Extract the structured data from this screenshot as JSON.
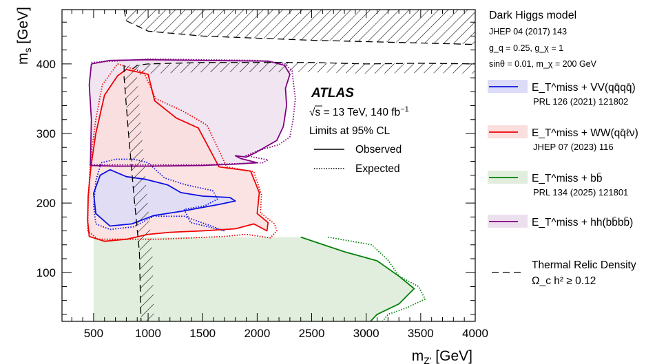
{
  "chart_data": {
    "type": "area",
    "title": "",
    "xlabel": "m",
    "xlabel_sub": "Z'",
    "xlabel_unit": " [GeV]",
    "ylabel": "m",
    "ylabel_sub": "s",
    "ylabel_unit": " [GeV]",
    "xlim": [
      210,
      4000
    ],
    "ylim": [
      30,
      478
    ],
    "xticks": [
      500,
      1000,
      1500,
      2000,
      2500,
      3000,
      3500,
      4000
    ],
    "yticks": [
      100,
      200,
      300,
      400
    ],
    "atlas": {
      "label": "ATLAS",
      "energy_prefix": "√s = 13 TeV, 140 fb",
      "energy_sup": "−1",
      "cl": "Limits at 95% CL",
      "observed": "Observed",
      "expected": "Expected"
    },
    "model": {
      "title": "Dark Higgs model",
      "ref": "JHEP 04 (2017) 143",
      "line1": "g_q = 0.25, g_χ = 1",
      "line2": "sinθ = 0.01, m_χ = 200 GeV"
    },
    "series": [
      {
        "name": "E_T^miss + VV(qq̄qq̄)",
        "ref": "PRL 126 (2021) 121802",
        "color": "#0a10e0",
        "fill": "#dcdcf8",
        "observed": [
          [
            650,
            248
          ],
          [
            800,
            238
          ],
          [
            980,
            234
          ],
          [
            1180,
            226
          ],
          [
            1300,
            215
          ],
          [
            1500,
            210
          ],
          [
            1750,
            208
          ],
          [
            1800,
            203
          ],
          [
            1650,
            198
          ],
          [
            1300,
            188
          ],
          [
            1050,
            182
          ],
          [
            850,
            170
          ],
          [
            650,
            167
          ],
          [
            520,
            185
          ],
          [
            500,
            214
          ],
          [
            560,
            240
          ],
          [
            650,
            248
          ]
        ],
        "expected": [
          [
            570,
            258
          ],
          [
            700,
            263
          ],
          [
            870,
            263
          ],
          [
            1000,
            258
          ],
          [
            1150,
            236
          ],
          [
            1350,
            226
          ],
          [
            1590,
            218
          ],
          [
            1640,
            206
          ],
          [
            1520,
            196
          ],
          [
            1330,
            191
          ],
          [
            1390,
            172
          ],
          [
            1700,
            160
          ],
          [
            1330,
            181
          ],
          [
            1050,
            181
          ],
          [
            870,
            166
          ],
          [
            650,
            162
          ],
          [
            520,
            170
          ],
          [
            500,
            196
          ],
          [
            520,
            232
          ],
          [
            570,
            258
          ]
        ]
      },
      {
        "name": "E_T^miss + WW(qq̄ℓν)",
        "ref": "JHEP 07 (2023) 116",
        "color": "#f00000",
        "fill": "#fbdede",
        "observed": [
          [
            475,
            252
          ],
          [
            520,
            300
          ],
          [
            600,
            355
          ],
          [
            720,
            383
          ],
          [
            800,
            392
          ],
          [
            1000,
            385
          ],
          [
            1060,
            347
          ],
          [
            1260,
            322
          ],
          [
            1460,
            308
          ],
          [
            1650,
            252
          ],
          [
            1940,
            246
          ],
          [
            2020,
            215
          ],
          [
            2000,
            185
          ],
          [
            2100,
            172
          ],
          [
            2090,
            160
          ],
          [
            1970,
            170
          ],
          [
            1800,
            163
          ],
          [
            1500,
            160
          ],
          [
            1200,
            158
          ],
          [
            1000,
            155
          ],
          [
            800,
            148
          ],
          [
            600,
            145
          ],
          [
            460,
            152
          ],
          [
            445,
            175
          ],
          [
            450,
            210
          ],
          [
            475,
            252
          ]
        ],
        "expected": [
          [
            720,
            400
          ],
          [
            960,
            388
          ],
          [
            1070,
            350
          ],
          [
            1310,
            333
          ],
          [
            1540,
            312
          ],
          [
            1720,
            252
          ],
          [
            1970,
            245
          ],
          [
            2040,
            212
          ],
          [
            2030,
            186
          ],
          [
            2160,
            170
          ],
          [
            2180,
            160
          ],
          [
            2120,
            150
          ],
          [
            1900,
            155
          ],
          [
            1700,
            152
          ],
          [
            1400,
            150
          ],
          [
            1100,
            148
          ],
          [
            800,
            148
          ],
          [
            540,
            148
          ],
          [
            445,
            160
          ],
          [
            450,
            200
          ],
          [
            470,
            260
          ],
          [
            520,
            320
          ],
          [
            580,
            370
          ],
          [
            720,
            400
          ]
        ]
      },
      {
        "name": "E_T^miss + bb̄",
        "ref": "PRL 134 (2025) 121801",
        "color": "#00800a",
        "fill": "#e1eedd",
        "observed": [
          [
            2400,
            151
          ],
          [
            2800,
            130
          ],
          [
            3100,
            117
          ],
          [
            3300,
            95
          ],
          [
            3440,
            77
          ],
          [
            3300,
            55
          ],
          [
            3100,
            40
          ],
          [
            3040,
            30
          ]
        ],
        "expected": [
          [
            2650,
            151
          ],
          [
            3050,
            140
          ],
          [
            3200,
            118
          ],
          [
            3300,
            95
          ],
          [
            3480,
            80
          ],
          [
            3540,
            62
          ],
          [
            3380,
            50
          ],
          [
            3200,
            40
          ],
          [
            3150,
            30
          ]
        ],
        "band": [
          [
            500,
            151
          ],
          [
            2400,
            151
          ],
          [
            2800,
            130
          ],
          [
            3100,
            117
          ],
          [
            3300,
            95
          ],
          [
            3440,
            77
          ],
          [
            3300,
            55
          ],
          [
            3100,
            40
          ],
          [
            3040,
            30
          ],
          [
            500,
            30
          ]
        ]
      },
      {
        "name": "E_T^miss + hh(bb̄bb̄)",
        "ref": "",
        "color": "#800080",
        "fill": "#ede0ee",
        "observed": [
          [
            480,
            400
          ],
          [
            650,
            405
          ],
          [
            1000,
            406
          ],
          [
            1500,
            405
          ],
          [
            2100,
            404
          ],
          [
            2250,
            398
          ],
          [
            2300,
            385
          ],
          [
            2260,
            365
          ],
          [
            2270,
            340
          ],
          [
            2240,
            310
          ],
          [
            2180,
            290
          ],
          [
            1980,
            272
          ],
          [
            1900,
            266
          ],
          [
            1800,
            268
          ],
          [
            1850,
            264
          ],
          [
            2000,
            258
          ],
          [
            1800,
            256
          ],
          [
            1500,
            254
          ],
          [
            1000,
            253
          ],
          [
            700,
            253
          ],
          [
            470,
            254
          ],
          [
            480,
            320
          ],
          [
            460,
            370
          ],
          [
            480,
            400
          ]
        ],
        "expected": [
          [
            480,
            402
          ],
          [
            1000,
            407
          ],
          [
            2000,
            405
          ],
          [
            2250,
            401
          ],
          [
            2320,
            390
          ],
          [
            2350,
            350
          ],
          [
            2330,
            320
          ],
          [
            2300,
            295
          ],
          [
            2200,
            284
          ],
          [
            2000,
            275
          ],
          [
            1900,
            268
          ],
          [
            2100,
            262
          ],
          [
            2050,
            258
          ],
          [
            1500,
            255
          ],
          [
            1000,
            255
          ],
          [
            480,
            255
          ]
        ]
      }
    ],
    "relic": {
      "name": "Thermal Relic Density",
      "condition": "Ω_c h² ≥ 0.12",
      "line_main": [
        [
          780,
          398
        ],
        [
          780,
          380
        ],
        [
          820,
          300
        ],
        [
          870,
          210
        ],
        [
          920,
          130
        ],
        [
          930,
          60
        ],
        [
          935,
          30
        ]
      ],
      "line_upper": [
        [
          780,
          478
        ],
        [
          800,
          462
        ],
        [
          1000,
          447
        ],
        [
          1500,
          440
        ],
        [
          2000,
          437
        ],
        [
          2500,
          434
        ],
        [
          3000,
          432
        ],
        [
          3500,
          430
        ],
        [
          4000,
          428
        ]
      ],
      "line_band": [
        [
          860,
          393
        ],
        [
          900,
          398
        ],
        [
          1000,
          400
        ],
        [
          1500,
          402
        ],
        [
          2000,
          402
        ],
        [
          2500,
          402
        ],
        [
          3000,
          400
        ],
        [
          3500,
          401
        ],
        [
          4000,
          400
        ]
      ]
    }
  }
}
